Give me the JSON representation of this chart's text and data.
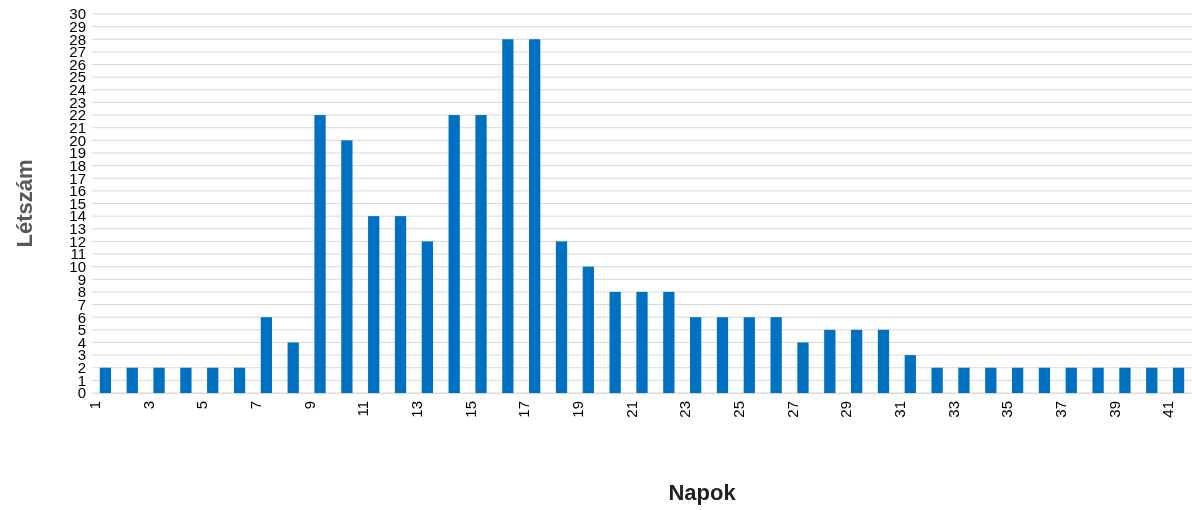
{
  "chart_data": {
    "type": "bar",
    "xlabel": "Napok",
    "ylabel": "Létszám",
    "categories": [
      "1",
      null,
      "3",
      null,
      "5",
      null,
      "7",
      null,
      "9",
      null,
      "11",
      null,
      "13",
      null,
      "15",
      null,
      "17",
      null,
      "19",
      null,
      "21",
      null,
      "23",
      null,
      "25",
      null,
      "27",
      null,
      "29",
      null,
      "31",
      null,
      "33",
      null,
      "35",
      null,
      "37",
      null,
      "39",
      null,
      "41"
    ],
    "values": [
      2,
      2,
      2,
      2,
      2,
      2,
      6,
      4,
      22,
      20,
      14,
      14,
      12,
      22,
      22,
      28,
      28,
      12,
      10,
      8,
      8,
      8,
      6,
      6,
      6,
      6,
      4,
      5,
      5,
      5,
      3,
      2,
      2,
      2,
      2,
      2,
      2,
      2,
      2,
      2,
      2
    ],
    "color": "#0070c0",
    "ylim": [
      0,
      30
    ],
    "yticks": [
      0,
      1,
      2,
      3,
      4,
      5,
      6,
      7,
      8,
      9,
      10,
      11,
      12,
      13,
      14,
      15,
      16,
      17,
      18,
      19,
      20,
      21,
      22,
      23,
      24,
      25,
      26,
      27,
      28,
      29,
      30
    ],
    "grid": "y"
  }
}
